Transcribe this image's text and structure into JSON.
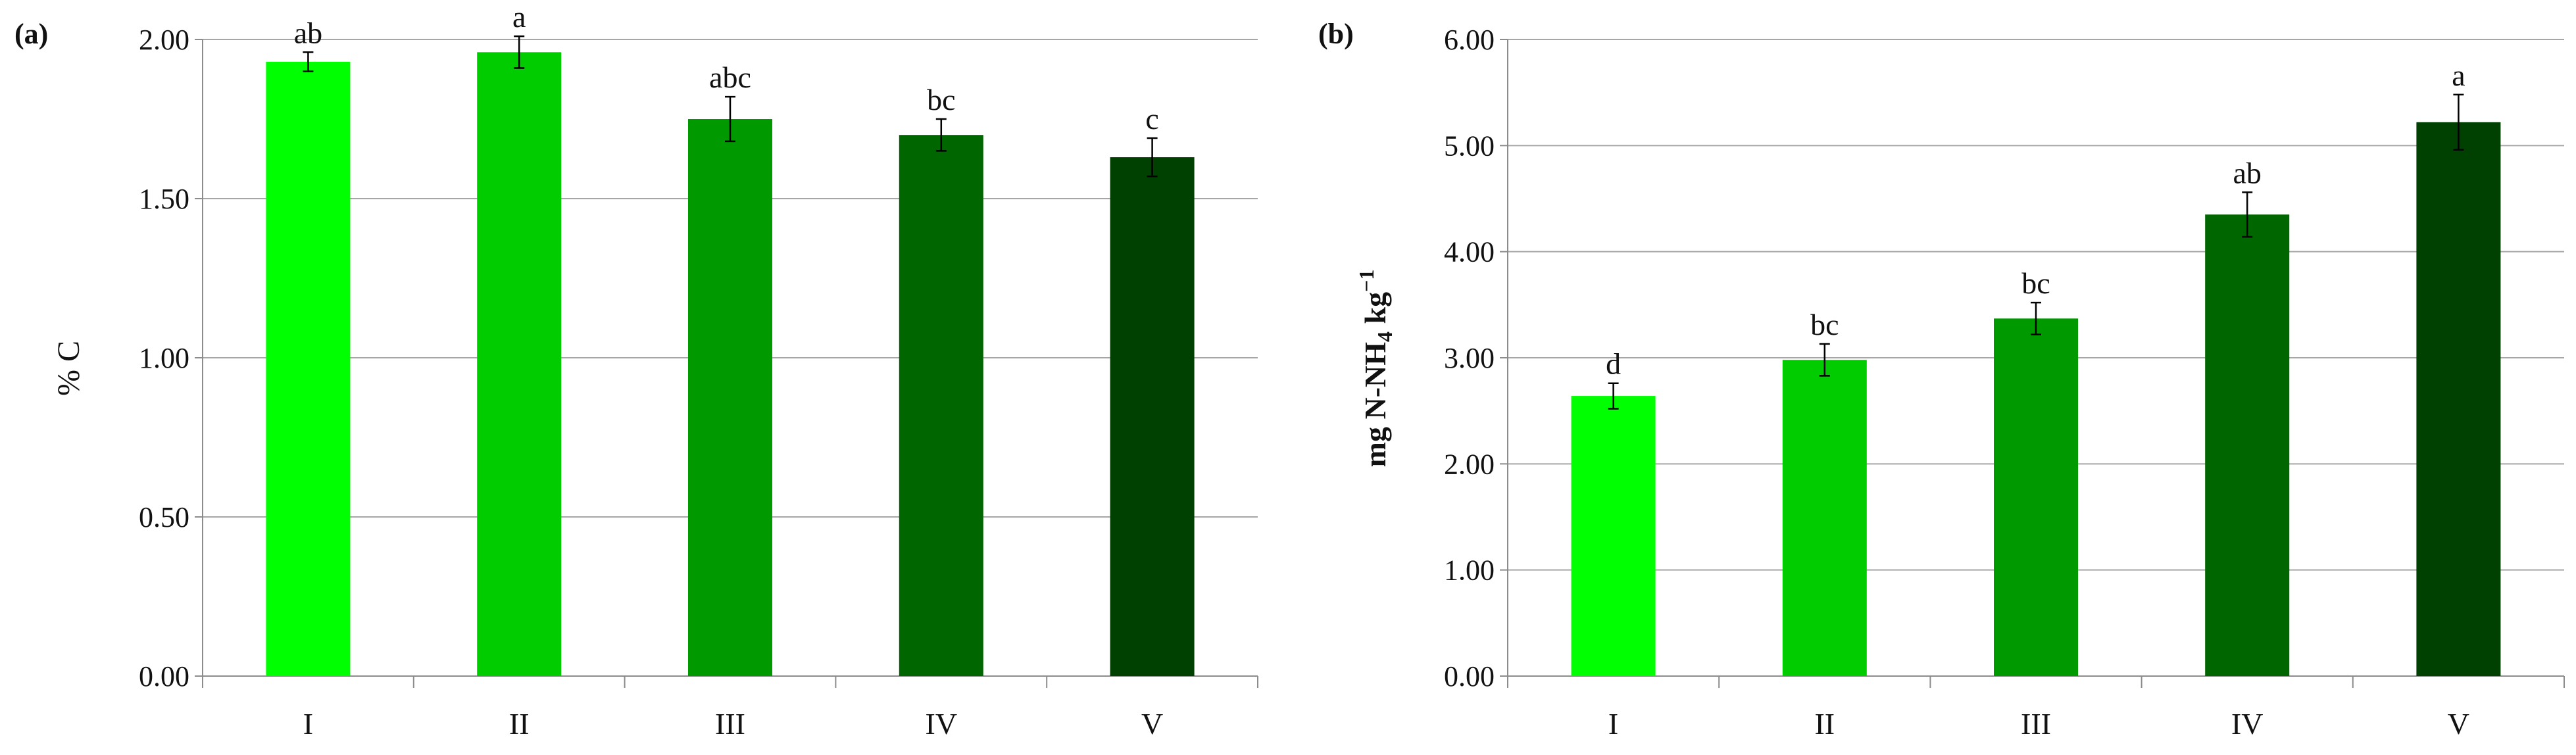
{
  "chart_data": [
    {
      "panel": "(a)",
      "type": "bar",
      "categories": [
        "I",
        "II",
        "III",
        "IV",
        "V"
      ],
      "values": [
        1.93,
        1.96,
        1.75,
        1.7,
        1.63
      ],
      "errors": [
        0.03,
        0.05,
        0.07,
        0.05,
        0.06
      ],
      "letters": [
        "ab",
        "a",
        "abc",
        "bc",
        "c"
      ],
      "colors": [
        "#00ff00",
        "#00cc00",
        "#009900",
        "#006600",
        "#004000"
      ],
      "ylabel": "% C",
      "ylim": [
        0,
        2
      ],
      "yticks": [
        0,
        0.5,
        1.0,
        1.5,
        2.0
      ],
      "ytick_labels": [
        "0.00",
        "0.50",
        "1.00",
        "1.50",
        "2.00"
      ],
      "grid": true
    },
    {
      "panel": "(b)",
      "type": "bar",
      "categories": [
        "I",
        "II",
        "III",
        "IV",
        "V"
      ],
      "values": [
        2.64,
        2.98,
        3.37,
        4.35,
        5.22
      ],
      "errors": [
        0.12,
        0.15,
        0.15,
        0.21,
        0.26
      ],
      "letters": [
        "d",
        "bc",
        "bc",
        "ab",
        "a"
      ],
      "colors": [
        "#00ff00",
        "#00cc00",
        "#009900",
        "#006600",
        "#004000"
      ],
      "ylabel_parts": {
        "pre": "mg N-NH",
        "sub": "4",
        "mid": " kg",
        "sup": "−1"
      },
      "ylim": [
        0,
        6
      ],
      "yticks": [
        0,
        1,
        2,
        3,
        4,
        5,
        6
      ],
      "ytick_labels": [
        "0.00",
        "1.00",
        "2.00",
        "3.00",
        "4.00",
        "5.00",
        "6.00"
      ],
      "grid": true
    }
  ]
}
